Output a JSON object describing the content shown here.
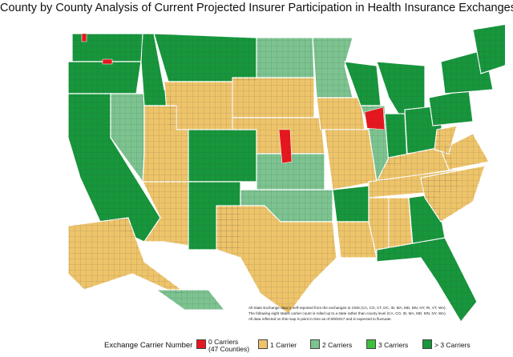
{
  "title": "County by County Analysis of Current Projected Insurer Participation in Health Insurance Exchanges",
  "colors": {
    "zero": "#e8161e",
    "one": "#eec46a",
    "two": "#7cc390",
    "three": "#3fbf3f",
    "more": "#17963c"
  },
  "notes": [
    "All State Exchange data is self-reported from the exchanges to CMS (CA, CO, CT, DC, ID, MA, MD, MN, NY, RI, VT, WA).",
    "The following eight states carrier count is rolled up to a state rather than county level (CA, CO, ID, MA, MD, MN, NY, WA).",
    "All data reflected on this map is point in time as of 8/9/2017 and is expected to fluctuate."
  ],
  "legend": {
    "title": "Exchange Carrier Number",
    "items": [
      {
        "key": "zero",
        "label": "0 Carriers",
        "sub": "(47 Counties)"
      },
      {
        "key": "one",
        "label": "1 Carrier",
        "sub": ""
      },
      {
        "key": "two",
        "label": "2 Carriers",
        "sub": ""
      },
      {
        "key": "three",
        "label": "3 Carriers",
        "sub": ""
      },
      {
        "key": "more",
        "label": "> 3 Carriers",
        "sub": ""
      }
    ]
  }
}
